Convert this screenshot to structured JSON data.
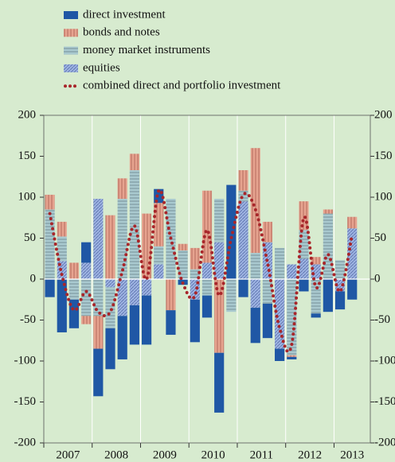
{
  "chart_data": {
    "type": "bar",
    "stacked": true,
    "categories": [
      null,
      null,
      null,
      null,
      null,
      null,
      null,
      null,
      null,
      null,
      null,
      null,
      null,
      null,
      null,
      null,
      null,
      null,
      null,
      null,
      null,
      null,
      null,
      null,
      null,
      null
    ],
    "years": [
      "2007",
      "2008",
      "2009",
      "2010",
      "2011",
      "2012",
      "2013"
    ],
    "series": [
      {
        "name": "direct investment",
        "color": "#1f57a5",
        "pattern": "solid",
        "values": [
          -22,
          -65,
          -35,
          25,
          -58,
          -50,
          -53,
          -48,
          -60,
          17,
          -30,
          -7,
          -52,
          -27,
          -73,
          115,
          -22,
          -43,
          -42,
          -15,
          -3,
          -15,
          -5,
          -40,
          -22,
          -25
        ]
      },
      {
        "name": "bonds and notes",
        "color": "#e6a38f",
        "pattern": "vertical",
        "values": [
          18,
          18,
          20,
          -10,
          -40,
          78,
          25,
          20,
          80,
          53,
          -38,
          8,
          26,
          88,
          -90,
          0,
          25,
          128,
          25,
          0,
          -2,
          35,
          9,
          5,
          0,
          14
        ]
      },
      {
        "name": "money market instruments",
        "color": "#a9c9cf",
        "pattern": "horizontal",
        "values": [
          85,
          30,
          -25,
          -45,
          -45,
          -50,
          98,
          133,
          0,
          22,
          98,
          35,
          12,
          -20,
          53,
          -40,
          13,
          32,
          -30,
          38,
          -93,
          35,
          -42,
          80,
          23,
          0
        ]
      },
      {
        "name": "equities",
        "color": "#9fb5e3",
        "pattern": "diagonal",
        "values": [
          0,
          22,
          0,
          20,
          98,
          -10,
          -45,
          -32,
          -20,
          18,
          0,
          0,
          -25,
          20,
          45,
          0,
          95,
          -35,
          45,
          -85,
          18,
          25,
          18,
          0,
          -15,
          62
        ]
      },
      {
        "name": "combined direct and portfolio investment",
        "color": "#a8262a",
        "type": "line",
        "values": [
          80,
          5,
          -38,
          -15,
          -40,
          -40,
          10,
          65,
          0,
          108,
          50,
          -5,
          -20,
          60,
          -20,
          50,
          103,
          85,
          20,
          -60,
          -80,
          75,
          -10,
          30,
          -15,
          55
        ]
      }
    ],
    "ylim": [
      -200,
      200
    ],
    "yticks": [
      -200,
      -150,
      -100,
      -50,
      0,
      50,
      100,
      150,
      200
    ]
  }
}
